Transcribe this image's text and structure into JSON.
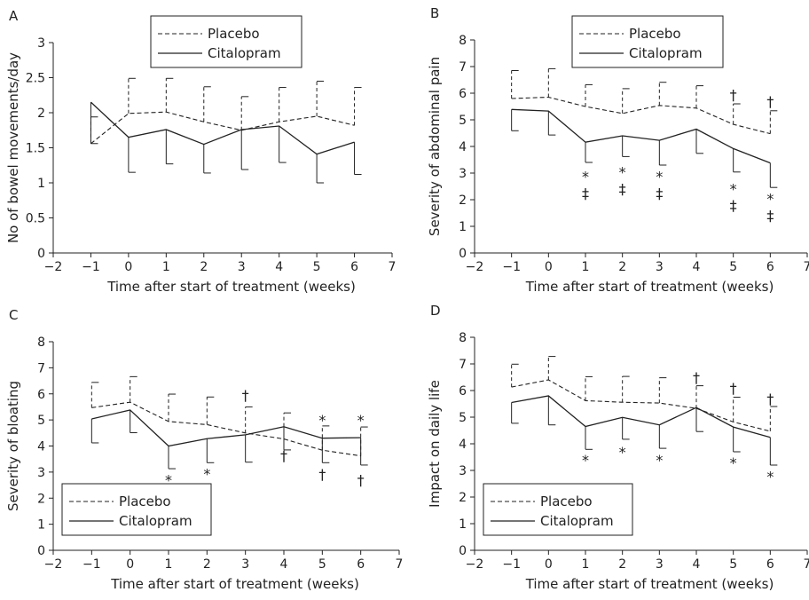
{
  "chart_data": [
    {
      "type": "line",
      "panel_label": "A",
      "xlabel": "Time after start of treatment (weeks)",
      "ylabel": "No of bowel movements/day",
      "xlim": [
        -2,
        7
      ],
      "ylim": [
        0,
        3
      ],
      "xticks": [
        -2,
        -1,
        0,
        1,
        2,
        3,
        4,
        5,
        6,
        7
      ],
      "yticks": [
        0,
        0.5,
        1,
        1.5,
        2,
        2.5,
        3
      ],
      "legend_position": "top-center",
      "x": [
        -1,
        0,
        1,
        2,
        3,
        4,
        5,
        6
      ],
      "series": [
        {
          "name": "Placebo",
          "style": "dashed",
          "error_dir": "up",
          "values": [
            1.56,
            1.99,
            2.01,
            1.87,
            1.75,
            1.87,
            1.95,
            1.82
          ],
          "error": [
            0.38,
            0.5,
            0.48,
            0.5,
            0.48,
            0.49,
            0.5,
            0.54
          ]
        },
        {
          "name": "Citalopram",
          "style": "solid",
          "error_dir": "down",
          "values": [
            2.15,
            1.65,
            1.76,
            1.55,
            1.76,
            1.81,
            1.41,
            1.58
          ],
          "error": [
            0.59,
            0.5,
            0.49,
            0.41,
            0.57,
            0.52,
            0.41,
            0.46
          ]
        }
      ],
      "annotations": []
    },
    {
      "type": "line",
      "panel_label": "B",
      "xlabel": "Time after start of treatment (weeks)",
      "ylabel": "Severity of abdominal pain",
      "xlim": [
        -2,
        7
      ],
      "ylim": [
        0,
        8
      ],
      "xticks": [
        -2,
        -1,
        0,
        1,
        2,
        3,
        4,
        5,
        6,
        7
      ],
      "yticks": [
        0,
        1,
        2,
        3,
        4,
        5,
        6,
        7,
        8
      ],
      "legend_position": "top-center",
      "x": [
        -1,
        0,
        1,
        2,
        3,
        4,
        5,
        6
      ],
      "series": [
        {
          "name": "Placebo",
          "style": "dashed",
          "error_dir": "up",
          "values": [
            5.8,
            5.85,
            5.5,
            5.24,
            5.54,
            5.44,
            4.83,
            4.48
          ],
          "error": [
            1.05,
            1.07,
            0.82,
            0.93,
            0.87,
            0.84,
            0.77,
            0.86
          ]
        },
        {
          "name": "Citalopram",
          "style": "solid",
          "error_dir": "down",
          "values": [
            5.39,
            5.33,
            4.16,
            4.4,
            4.23,
            4.65,
            3.92,
            3.38
          ],
          "error": [
            0.8,
            0.9,
            0.76,
            0.78,
            0.93,
            0.91,
            0.88,
            0.92
          ]
        }
      ],
      "annotations": [
        {
          "x": 1,
          "y": 2.88,
          "text": "*"
        },
        {
          "x": 1,
          "y": 2.25,
          "text": "‡"
        },
        {
          "x": 2,
          "y": 3.05,
          "text": "*"
        },
        {
          "x": 2,
          "y": 2.42,
          "text": "‡"
        },
        {
          "x": 3,
          "y": 2.88,
          "text": "*"
        },
        {
          "x": 3,
          "y": 2.25,
          "text": "‡"
        },
        {
          "x": 5,
          "y": 2.42,
          "text": "*"
        },
        {
          "x": 5,
          "y": 1.8,
          "text": "‡"
        },
        {
          "x": 5,
          "y": 5.95,
          "text": "†"
        },
        {
          "x": 6,
          "y": 2.05,
          "text": "*"
        },
        {
          "x": 6,
          "y": 1.42,
          "text": "‡"
        },
        {
          "x": 6,
          "y": 5.7,
          "text": "†"
        }
      ]
    },
    {
      "type": "line",
      "panel_label": "C",
      "xlabel": "Time after start of treatment (weeks)",
      "ylabel": "Severity of bloating",
      "xlim": [
        -2,
        7
      ],
      "ylim": [
        0,
        8
      ],
      "xticks": [
        -2,
        -1,
        0,
        1,
        2,
        3,
        4,
        5,
        6,
        7
      ],
      "yticks": [
        0,
        1,
        2,
        3,
        4,
        5,
        6,
        7,
        8
      ],
      "legend_position": "bottom-left",
      "x": [
        -1,
        0,
        1,
        2,
        3,
        4,
        5,
        6
      ],
      "series": [
        {
          "name": "Placebo",
          "style": "dashed",
          "error_dir": "up",
          "values": [
            5.47,
            5.68,
            4.94,
            4.82,
            4.5,
            4.27,
            3.84,
            3.62
          ],
          "error": [
            0.97,
            0.98,
            1.05,
            1.06,
            1.0,
            1.0,
            0.93,
            1.11
          ]
        },
        {
          "name": "Citalopram",
          "style": "solid",
          "error_dir": "down",
          "values": [
            5.04,
            5.38,
            4.0,
            4.28,
            4.43,
            4.74,
            4.3,
            4.32
          ],
          "error": [
            0.92,
            0.87,
            0.87,
            0.92,
            1.05,
            0.89,
            0.94,
            1.05
          ]
        }
      ],
      "annotations": [
        {
          "x": 1,
          "y": 2.7,
          "text": "*"
        },
        {
          "x": 2,
          "y": 2.95,
          "text": "*"
        },
        {
          "x": 3,
          "y": 5.95,
          "text": "†"
        },
        {
          "x": 4,
          "y": 3.65,
          "text": "†"
        },
        {
          "x": 5,
          "y": 5.0,
          "text": "*"
        },
        {
          "x": 5,
          "y": 2.92,
          "text": "†"
        },
        {
          "x": 6,
          "y": 5.0,
          "text": "*"
        },
        {
          "x": 6,
          "y": 2.7,
          "text": "†"
        }
      ]
    },
    {
      "type": "line",
      "panel_label": "D",
      "xlabel": "Time after start of treatment (weeks)",
      "ylabel": "Impact on daily life",
      "xlim": [
        -2,
        7
      ],
      "ylim": [
        0,
        8
      ],
      "xticks": [
        -2,
        -1,
        0,
        1,
        2,
        3,
        4,
        5,
        6,
        7
      ],
      "yticks": [
        0,
        1,
        2,
        3,
        4,
        5,
        6,
        7,
        8
      ],
      "legend_position": "bottom-left",
      "x": [
        -1,
        0,
        1,
        2,
        3,
        4,
        5,
        6
      ],
      "series": [
        {
          "name": "Placebo",
          "style": "dashed",
          "error_dir": "up",
          "values": [
            6.13,
            6.4,
            5.62,
            5.56,
            5.53,
            5.33,
            4.82,
            4.47
          ],
          "error": [
            0.86,
            0.88,
            0.9,
            0.97,
            0.95,
            0.85,
            0.93,
            0.93
          ]
        },
        {
          "name": "Citalopram",
          "style": "solid",
          "error_dir": "down",
          "values": [
            5.55,
            5.8,
            4.65,
            4.99,
            4.71,
            5.36,
            4.63,
            4.24
          ],
          "error": [
            0.78,
            1.09,
            0.86,
            0.82,
            0.88,
            0.9,
            0.93,
            1.04
          ]
        }
      ],
      "annotations": [
        {
          "x": 1,
          "y": 3.4,
          "text": "*"
        },
        {
          "x": 2,
          "y": 3.7,
          "text": "*"
        },
        {
          "x": 3,
          "y": 3.4,
          "text": "*"
        },
        {
          "x": 4,
          "y": 6.5,
          "text": "†"
        },
        {
          "x": 5,
          "y": 3.3,
          "text": "*"
        },
        {
          "x": 5,
          "y": 6.1,
          "text": "†"
        },
        {
          "x": 6,
          "y": 2.78,
          "text": "*"
        },
        {
          "x": 6,
          "y": 5.7,
          "text": "†"
        }
      ]
    }
  ]
}
